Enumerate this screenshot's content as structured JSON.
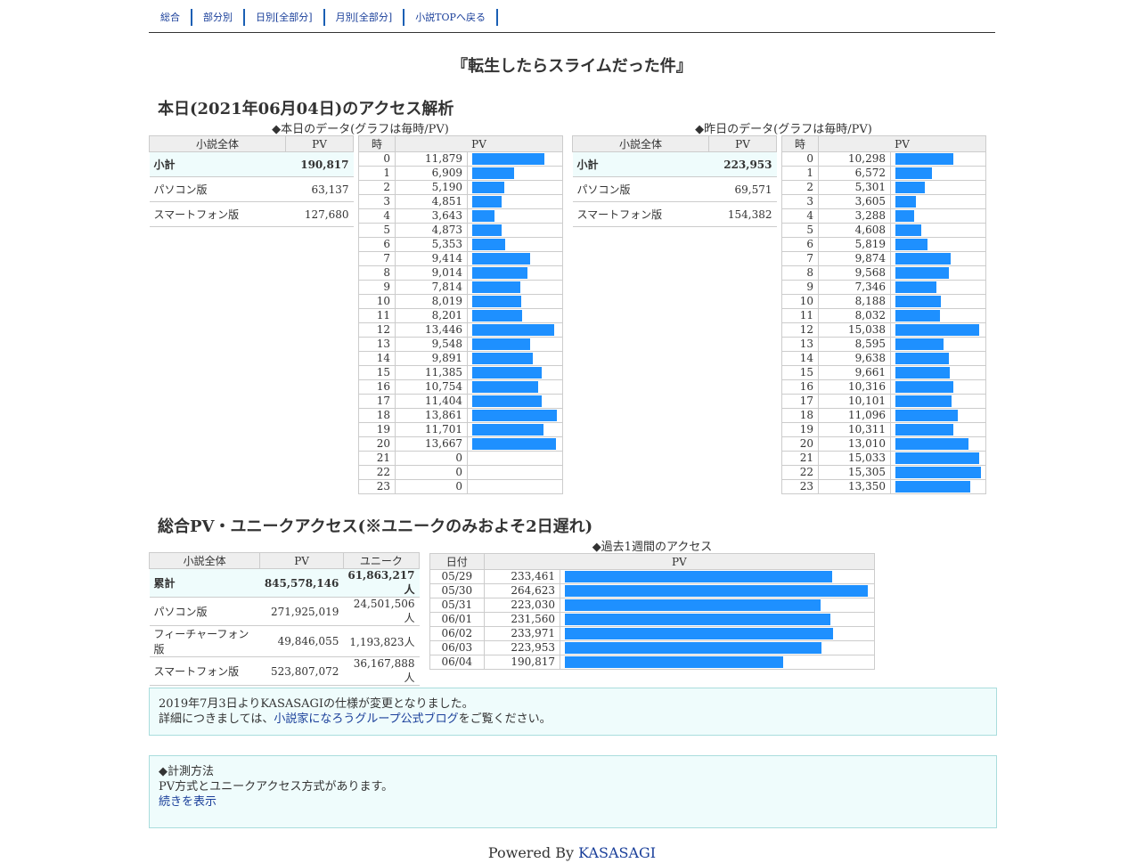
{
  "nav": [
    "総合",
    "部分別",
    "日別[全部分]",
    "月別[全部分]",
    "小説TOPへ戻る"
  ],
  "novel_title": "『転生したらスライムだった件』",
  "today_heading": "本日(2021年06月04日)のアクセス解析",
  "today_caption": "◆本日のデータ(グラフは毎時/PV)",
  "yesterday_caption": "◆昨日のデータ(グラフは毎時/PV)",
  "summary_headers": {
    "all": "小説全体",
    "pv": "PV"
  },
  "hour_headers": {
    "hour": "時",
    "pv": "PV"
  },
  "today_summary": [
    {
      "label": "小計",
      "pv": "190,817"
    },
    {
      "label": "パソコン版",
      "pv": "63,137"
    },
    {
      "label": "スマートフォン版",
      "pv": "127,680"
    }
  ],
  "yesterday_summary": [
    {
      "label": "小計",
      "pv": "223,953"
    },
    {
      "label": "パソコン版",
      "pv": "69,571"
    },
    {
      "label": "スマートフォン版",
      "pv": "154,382"
    }
  ],
  "bar_color": "#1e90ff",
  "today_hourly": [
    {
      "h": "0",
      "v": 11879
    },
    {
      "h": "1",
      "v": 6909
    },
    {
      "h": "2",
      "v": 5190
    },
    {
      "h": "3",
      "v": 4851
    },
    {
      "h": "4",
      "v": 3643
    },
    {
      "h": "5",
      "v": 4873
    },
    {
      "h": "6",
      "v": 5353
    },
    {
      "h": "7",
      "v": 9414
    },
    {
      "h": "8",
      "v": 9014
    },
    {
      "h": "9",
      "v": 7814
    },
    {
      "h": "10",
      "v": 8019
    },
    {
      "h": "11",
      "v": 8201
    },
    {
      "h": "12",
      "v": 13446
    },
    {
      "h": "13",
      "v": 9548
    },
    {
      "h": "14",
      "v": 9891
    },
    {
      "h": "15",
      "v": 11385
    },
    {
      "h": "16",
      "v": 10754
    },
    {
      "h": "17",
      "v": 11404
    },
    {
      "h": "18",
      "v": 13861
    },
    {
      "h": "19",
      "v": 11701
    },
    {
      "h": "20",
      "v": 13667
    },
    {
      "h": "21",
      "v": 0
    },
    {
      "h": "22",
      "v": 0
    },
    {
      "h": "23",
      "v": 0
    }
  ],
  "yesterday_hourly": [
    {
      "h": "0",
      "v": 10298
    },
    {
      "h": "1",
      "v": 6572
    },
    {
      "h": "2",
      "v": 5301
    },
    {
      "h": "3",
      "v": 3605
    },
    {
      "h": "4",
      "v": 3288
    },
    {
      "h": "5",
      "v": 4608
    },
    {
      "h": "6",
      "v": 5819
    },
    {
      "h": "7",
      "v": 9874
    },
    {
      "h": "8",
      "v": 9568
    },
    {
      "h": "9",
      "v": 7346
    },
    {
      "h": "10",
      "v": 8188
    },
    {
      "h": "11",
      "v": 8032
    },
    {
      "h": "12",
      "v": 15038
    },
    {
      "h": "13",
      "v": 8595
    },
    {
      "h": "14",
      "v": 9638
    },
    {
      "h": "15",
      "v": 9661
    },
    {
      "h": "16",
      "v": 10316
    },
    {
      "h": "17",
      "v": 10101
    },
    {
      "h": "18",
      "v": 11096
    },
    {
      "h": "19",
      "v": 10311
    },
    {
      "h": "20",
      "v": 13010
    },
    {
      "h": "21",
      "v": 15033
    },
    {
      "h": "22",
      "v": 15305
    },
    {
      "h": "23",
      "v": 13350
    }
  ],
  "total_heading": "総合PV・ユニークアクセス(※ユニークのみおよそ2日遅れ)",
  "week_caption": "◆過去1週間のアクセス",
  "total_headers": {
    "all": "小説全体",
    "pv": "PV",
    "unique": "ユニーク"
  },
  "total_summary": [
    {
      "label": "累計",
      "pv": "845,578,146",
      "unique": "61,863,217人"
    },
    {
      "label": "パソコン版",
      "pv": "271,925,019",
      "unique": "24,501,506人"
    },
    {
      "label": "フィーチャーフォン版",
      "pv": "49,846,055",
      "unique": "1,193,823人"
    },
    {
      "label": "スマートフォン版",
      "pv": "523,807,072",
      "unique": "36,167,888人"
    }
  ],
  "week_headers": {
    "date": "日付",
    "pv": "PV"
  },
  "week": [
    {
      "d": "05/29",
      "v": 233461
    },
    {
      "d": "05/30",
      "v": 264623
    },
    {
      "d": "05/31",
      "v": 223030
    },
    {
      "d": "06/01",
      "v": 231560
    },
    {
      "d": "06/02",
      "v": 233971
    },
    {
      "d": "06/03",
      "v": 223953
    },
    {
      "d": "06/04",
      "v": 190817
    }
  ],
  "notice1": {
    "line1": "2019年7月3日よりKASASAGIの仕様が変更となりました。",
    "line2_before": "詳細につきましては、",
    "line2_link": "小説家になろうグループ公式ブログ",
    "line2_after": "をご覧ください。"
  },
  "notice2": {
    "title": "◆計測方法",
    "body": "PV方式とユニークアクセス方式があります。",
    "link": "続きを表示"
  },
  "footer": {
    "prefix": "Powered By ",
    "link": "KASASAGI"
  }
}
